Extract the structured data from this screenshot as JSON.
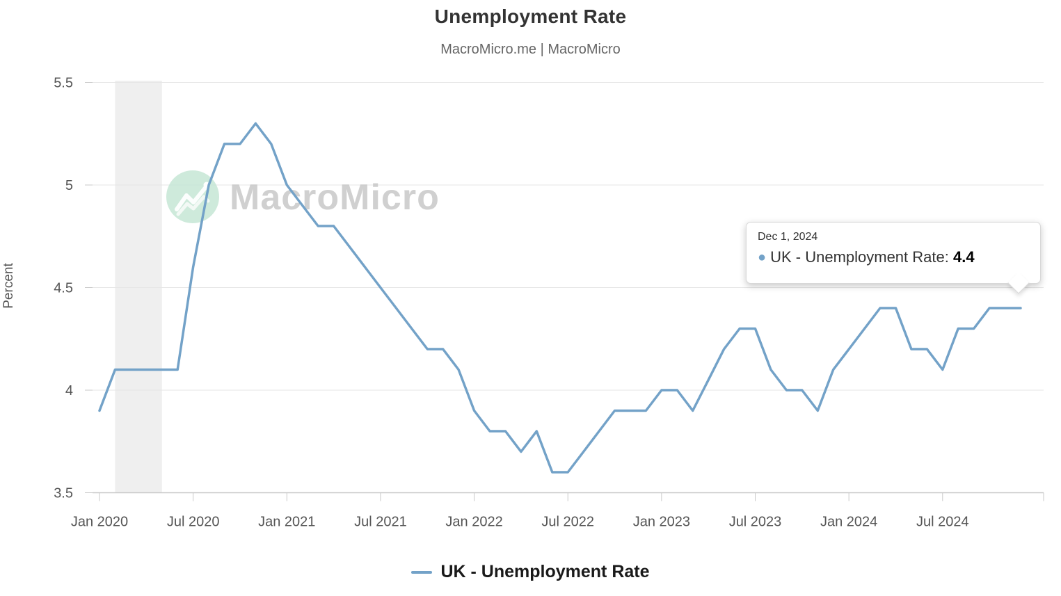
{
  "header": {
    "title": "Unemployment Rate",
    "subtitle": "MacroMicro.me | MacroMicro"
  },
  "watermark": {
    "text": "MacroMicro"
  },
  "y_axis": {
    "title": "Percent",
    "tick_labels": [
      "5.5",
      "5",
      "4.5",
      "4",
      "3.5"
    ],
    "tick_values": [
      5.5,
      5.0,
      4.5,
      4.0,
      3.5
    ]
  },
  "x_axis": {
    "tick_labels": [
      "Jan 2020",
      "Jul 2020",
      "Jan 2021",
      "Jul 2021",
      "Jan 2022",
      "Jul 2022",
      "Jan 2023",
      "Jul 2023",
      "Jan 2024",
      "Jul 2024"
    ],
    "tick_month_indices": [
      0,
      6,
      12,
      18,
      24,
      30,
      36,
      42,
      48,
      54
    ]
  },
  "legend": {
    "label": "UK - Unemployment Rate"
  },
  "tooltip": {
    "date": "Dec 1, 2024",
    "dot": "●",
    "series_label": "UK - Unemployment Rate",
    "separator": ": ",
    "value": "4.4"
  },
  "colors": {
    "line": "#73a2c8",
    "grid": "#e6e6e6",
    "axis": "#c9c9c9",
    "band": "#efefef",
    "tick_text": "#555555",
    "watermark_text": "#cbcbcb",
    "watermark_circle": "#c9e8d8"
  },
  "chart_data": {
    "type": "line",
    "title": "Unemployment Rate",
    "subtitle": "MacroMicro.me | MacroMicro",
    "xlabel": "",
    "ylabel": "Percent",
    "ylim": [
      3.5,
      5.5
    ],
    "grid": true,
    "legend_position": "bottom",
    "x": [
      "Jan 2020",
      "Feb 2020",
      "Mar 2020",
      "Apr 2020",
      "May 2020",
      "Jun 2020",
      "Jul 2020",
      "Aug 2020",
      "Sep 2020",
      "Oct 2020",
      "Nov 2020",
      "Dec 2020",
      "Jan 2021",
      "Feb 2021",
      "Mar 2021",
      "Apr 2021",
      "May 2021",
      "Jun 2021",
      "Jul 2021",
      "Aug 2021",
      "Sep 2021",
      "Oct 2021",
      "Nov 2021",
      "Dec 2021",
      "Jan 2022",
      "Feb 2022",
      "Mar 2022",
      "Apr 2022",
      "May 2022",
      "Jun 2022",
      "Jul 2022",
      "Aug 2022",
      "Sep 2022",
      "Oct 2022",
      "Nov 2022",
      "Dec 2022",
      "Jan 2023",
      "Feb 2023",
      "Mar 2023",
      "Apr 2023",
      "May 2023",
      "Jun 2023",
      "Jul 2023",
      "Aug 2023",
      "Sep 2023",
      "Oct 2023",
      "Nov 2023",
      "Dec 2023",
      "Jan 2024",
      "Feb 2024",
      "Mar 2024",
      "Apr 2024",
      "May 2024",
      "Jun 2024",
      "Jul 2024",
      "Aug 2024",
      "Sep 2024",
      "Oct 2024",
      "Nov 2024",
      "Dec 2024"
    ],
    "series": [
      {
        "name": "UK - Unemployment Rate",
        "values": [
          3.9,
          4.1,
          4.1,
          4.1,
          4.1,
          4.1,
          4.6,
          5.0,
          5.2,
          5.2,
          5.3,
          5.2,
          5.0,
          4.9,
          4.8,
          4.8,
          4.7,
          4.6,
          4.5,
          4.4,
          4.3,
          4.2,
          4.2,
          4.1,
          3.9,
          3.8,
          3.8,
          3.7,
          3.8,
          3.6,
          3.6,
          3.7,
          3.8,
          3.9,
          3.9,
          3.9,
          4.0,
          4.0,
          3.9,
          4.05,
          4.2,
          4.3,
          4.3,
          4.1,
          4.0,
          4.0,
          3.9,
          4.1,
          4.2,
          4.3,
          4.4,
          4.4,
          4.2,
          4.2,
          4.1,
          4.3,
          4.3,
          4.4,
          4.4,
          4.4
        ]
      }
    ],
    "annotations": [
      {
        "type": "shaded_band",
        "label": "recession band",
        "from": "Feb 2020",
        "to": "May 2020"
      },
      {
        "type": "tooltip",
        "x": "Dec 2024",
        "text": "Dec 1, 2024 UK - Unemployment Rate: 4.4"
      }
    ]
  }
}
